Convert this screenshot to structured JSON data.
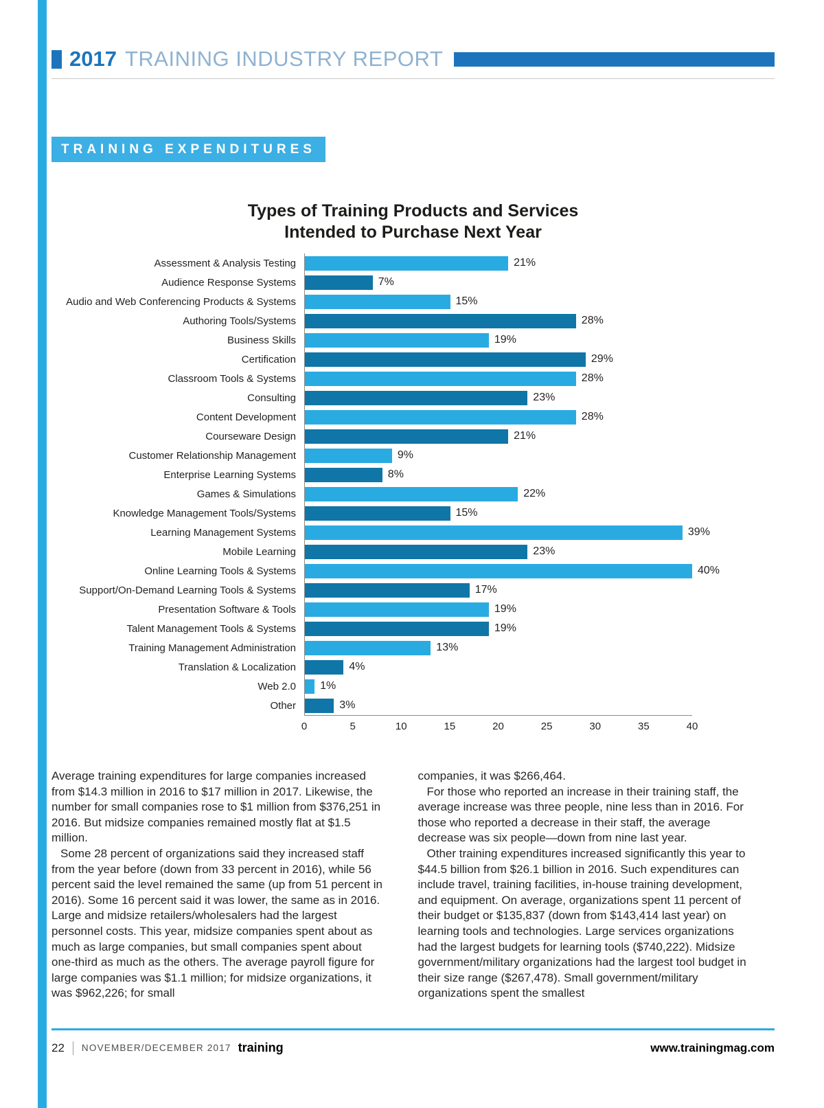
{
  "header": {
    "year": "2017",
    "title": "TRAINING INDUSTRY REPORT"
  },
  "section_badge": "TRAINING EXPENDITURES",
  "chart_data": {
    "type": "bar",
    "orientation": "horizontal",
    "title": "Types of Training Products and Services Intended to Purchase Next Year",
    "title_lines": [
      "Types of Training Products and Services",
      "Intended to Purchase Next Year"
    ],
    "categories": [
      "Assessment & Analysis Testing",
      "Audience Response Systems",
      "Audio and Web Conferencing Products & Systems",
      "Authoring Tools/Systems",
      "Business Skills",
      "Certification",
      "Classroom Tools & Systems",
      "Consulting",
      "Content Development",
      "Courseware Design",
      "Customer Relationship Management",
      "Enterprise Learning Systems",
      "Games & Simulations",
      "Knowledge Management Tools/Systems",
      "Learning Management Systems",
      "Mobile Learning",
      "Online Learning Tools & Systems",
      "Support/On-Demand Learning Tools & Systems",
      "Presentation Software & Tools",
      "Talent Management Tools & Systems",
      "Training Management Administration",
      "Translation & Localization",
      "Web 2.0",
      "Other"
    ],
    "values": [
      21,
      7,
      15,
      28,
      19,
      29,
      28,
      23,
      28,
      21,
      9,
      8,
      22,
      15,
      39,
      23,
      40,
      17,
      19,
      19,
      13,
      4,
      1,
      3
    ],
    "value_labels": [
      "21%",
      "7%",
      "15%",
      "28%",
      "19%",
      "29%",
      "28%",
      "23%",
      "28%",
      "21%",
      "9%",
      "8%",
      "22%",
      "15%",
      "39%",
      "23%",
      "40%",
      "17%",
      "19%",
      "19%",
      "13%",
      "4%",
      "1%",
      "3%"
    ],
    "xlim": [
      0,
      40
    ],
    "xticks": [
      0,
      5,
      10,
      15,
      20,
      25,
      30,
      35,
      40
    ],
    "grid": false,
    "legend_position": "none",
    "bar_colors": {
      "light": "#29abe2",
      "dark": "#0f76a7"
    }
  },
  "article": {
    "left_column": [
      "Average training expenditures for large companies increased from $14.3 million in 2016 to $17 million in 2017. Likewise, the number for small companies rose to $1 million from $376,251 in 2016. But midsize companies remained mostly flat at $1.5 million.",
      "Some 28 percent of organizations said they increased staff from the year before (down from 33 percent in 2016), while 56 percent said the level remained the same (up from 51 percent in 2016). Some 16 percent said it was lower, the same as in 2016. Large and midsize retailers/wholesalers had the largest personnel costs. This year, midsize companies spent about as much as large companies, but small companies spent about one-third as much as the others. The average payroll figure for large companies was $1.1 million; for midsize organizations, it was $962,226; for small"
    ],
    "right_column": [
      "companies, it was $266,464.",
      "For those who reported an increase in their training staff, the average increase was three people, nine less than in 2016. For those who reported a decrease in their staff, the average decrease was six people—down from nine last year.",
      "Other training expenditures increased significantly this year to $44.5 billion from $26.1 billion in 2016. Such expenditures can include travel, training facilities, in-house training development, and equipment. On average, organizations spent 11 percent of their budget or $135,837 (down from $143,414 last year) on learning tools and technologies. Large services organizations had the largest budgets for learning tools ($740,222). Midsize government/military organizations had the largest tool budget in their size range ($267,478). Small government/military organizations spent the smallest"
    ]
  },
  "footer": {
    "page_number": "22",
    "issue": "NOVEMBER/DECEMBER 2017",
    "magazine": "training",
    "website": "www.trainingmag.com"
  },
  "colors": {
    "accent_light_blue": "#29abe2",
    "accent_dark_blue": "#0f76a7",
    "header_blue": "#1c75bc",
    "header_title_blue": "#8fb2d2"
  }
}
